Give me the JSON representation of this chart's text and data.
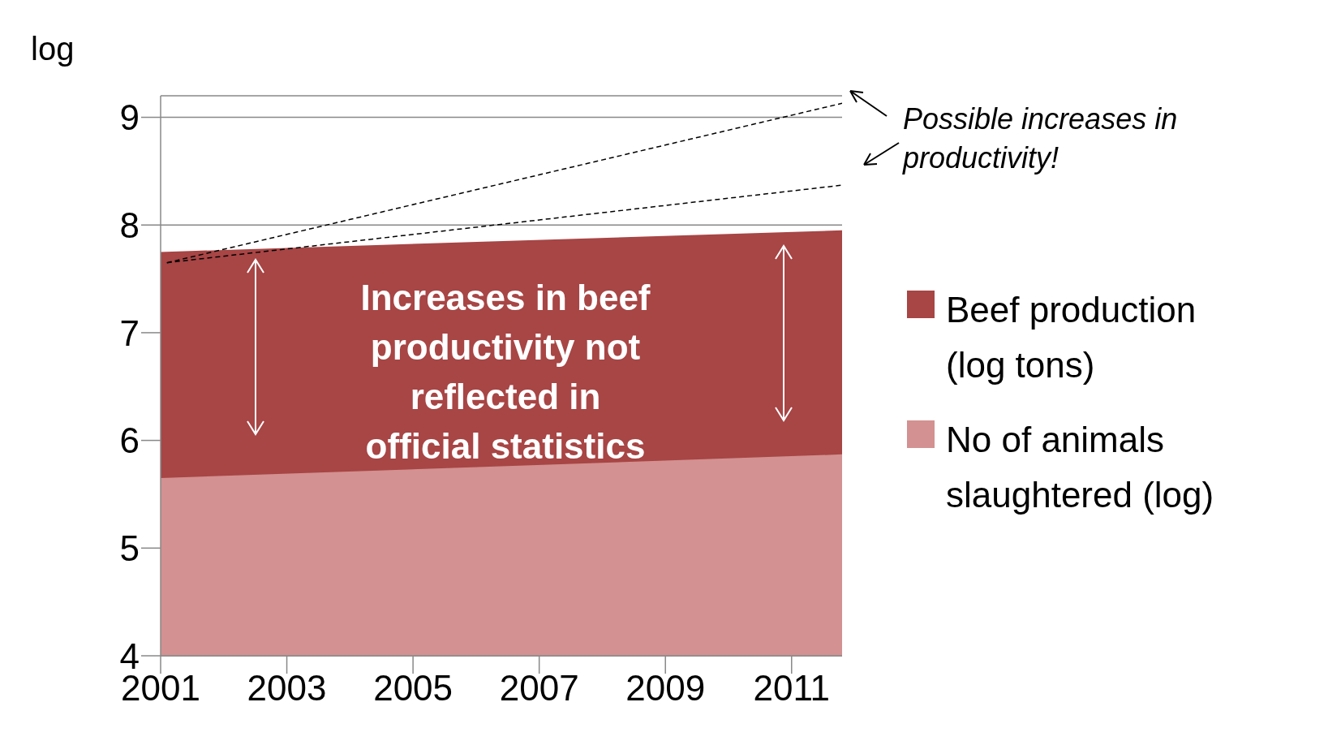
{
  "chart_data": {
    "type": "area",
    "ylabel": "log",
    "xlim": [
      2001,
      2011.8
    ],
    "xticks": [
      2001,
      2003,
      2005,
      2007,
      2009,
      2011
    ],
    "ylim": [
      4,
      9.2
    ],
    "yticks": [
      4,
      5,
      6,
      7,
      8,
      9
    ],
    "grid": "y",
    "legend": "right",
    "series": [
      {
        "name": "Beef production (log tons)",
        "color": "#a84545",
        "x": [
          2001,
          2011.8
        ],
        "values": [
          7.75,
          7.95
        ]
      },
      {
        "name": "No of animals slaughtered (log)",
        "color": "#d39191",
        "x": [
          2001,
          2011.8
        ],
        "values": [
          5.65,
          5.87
        ]
      },
      {
        "type": "line",
        "color": "#000000",
        "line_style": "dashed",
        "x": [
          2001.1,
          2011.8
        ],
        "values": [
          7.65,
          9.13
        ]
      },
      {
        "type": "line",
        "color": "#000000",
        "line_style": "dashed",
        "x": [
          2001.1,
          2011.8
        ],
        "values": [
          7.65,
          8.37
        ]
      }
    ],
    "annotations": [
      "Possible increases in productivity!",
      "Increases in beef productivity not reflected in official statistics"
    ]
  }
}
